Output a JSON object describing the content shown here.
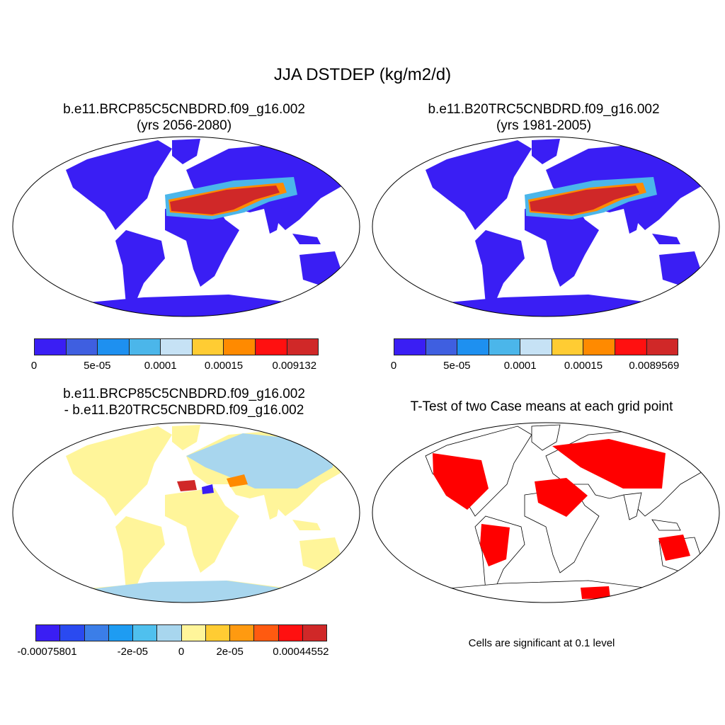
{
  "figure_title": "JJA DSTDEP (kg/m2/d)",
  "panels": {
    "future": {
      "title_line1": "b.e11.BRCP85C5CNBDRD.f09_g16.002",
      "title_line2": "(yrs 2056-2080)",
      "colorbar_labels": [
        "0",
        "5e-05",
        "0.0001",
        "0.00015",
        "0.009132"
      ],
      "colorbar_colors": [
        "#3a1ef4",
        "#3f5fe0",
        "#1e90f0",
        "#4bb6ea",
        "#c6e2f5",
        "#ffcc33",
        "#ff8a00",
        "#ff1010",
        "#d02828"
      ]
    },
    "past": {
      "title_line1": "b.e11.B20TRC5CNBDRD.f09_g16.002",
      "title_line2": "(yrs 1981-2005)",
      "colorbar_labels": [
        "0",
        "5e-05",
        "0.0001",
        "0.00015",
        "0.0089569"
      ],
      "colorbar_colors": [
        "#3a1ef4",
        "#3f5fe0",
        "#1e90f0",
        "#4bb6ea",
        "#c6e2f5",
        "#ffcc33",
        "#ff8a00",
        "#ff1010",
        "#d02828"
      ]
    },
    "difference": {
      "title_line1": "b.e11.BRCP85C5CNBDRD.f09_g16.002",
      "title_line2": "- b.e11.B20TRC5CNBDRD.f09_g16.002",
      "colorbar_labels": [
        "-0.00075801",
        "-2e-05",
        "0",
        "2e-05",
        "0.00044552"
      ],
      "colorbar_colors": [
        "#3a1ef4",
        "#2a4af0",
        "#3b7ee8",
        "#1e9cf2",
        "#4fc0ee",
        "#a8d6ee",
        "#fff59a",
        "#ffcc33",
        "#ff9a10",
        "#ff5a10",
        "#ff1010",
        "#d02828"
      ]
    },
    "ttest": {
      "title": "T-Test of two Case means at each grid point",
      "note": "Cells are significant at 0.1 level",
      "significant_color": "#ff0000"
    }
  },
  "map_colors": {
    "land_low": "#3a1ef4",
    "desert_high": "#d02828",
    "desert_mid": "#ff8a00",
    "desert_edge": "#4bb6ea",
    "diff_positive": "#fff59a",
    "diff_negative": "#a8d6ee"
  }
}
